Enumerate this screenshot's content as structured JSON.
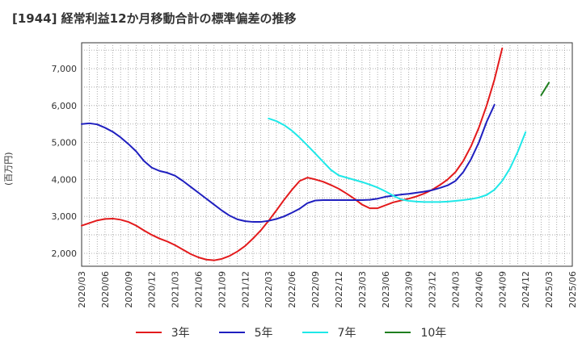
{
  "chart_data": {
    "type": "line",
    "title": "[1944]  経常利益12か月移動合計の標準偏差の推移",
    "ylabel": "(百万円)",
    "xlabel": "",
    "ylim": [
      1650,
      7700
    ],
    "yticks": [
      2000,
      3000,
      4000,
      5000,
      6000,
      7000
    ],
    "ytick_labels": [
      "2,000",
      "3,000",
      "4,000",
      "5,000",
      "6,000",
      "7,000"
    ],
    "x_start": "2020/03",
    "x_end": "2025/06",
    "x_tick_labels": [
      "2020/03",
      "2020/06",
      "2020/09",
      "2020/12",
      "2021/03",
      "2021/06",
      "2021/09",
      "2021/12",
      "2022/03",
      "2022/06",
      "2022/09",
      "2022/12",
      "2023/03",
      "2023/06",
      "2023/09",
      "2023/12",
      "2024/03",
      "2024/06",
      "2024/09",
      "2024/12",
      "2025/03",
      "2025/06"
    ],
    "grid": true,
    "legend_position": "bottom",
    "series": [
      {
        "name": "3年",
        "color": "#e31a1c",
        "start": "2020/03",
        "values": [
          2750,
          2820,
          2890,
          2930,
          2940,
          2910,
          2850,
          2750,
          2620,
          2500,
          2400,
          2320,
          2220,
          2100,
          1980,
          1890,
          1830,
          1810,
          1850,
          1930,
          2050,
          2200,
          2400,
          2620,
          2880,
          3160,
          3450,
          3720,
          3960,
          4050,
          4000,
          3940,
          3850,
          3750,
          3620,
          3480,
          3320,
          3220,
          3220,
          3300,
          3380,
          3430,
          3480,
          3540,
          3620,
          3720,
          3850,
          4000,
          4200,
          4500,
          4900,
          5400,
          6000,
          6700,
          7550
        ]
      },
      {
        "name": "5年",
        "color": "#1f1fbf",
        "start": "2020/03",
        "values": [
          5500,
          5520,
          5490,
          5400,
          5290,
          5140,
          4960,
          4760,
          4500,
          4320,
          4230,
          4180,
          4100,
          3960,
          3800,
          3640,
          3480,
          3320,
          3160,
          3020,
          2920,
          2870,
          2850,
          2850,
          2880,
          2930,
          3000,
          3100,
          3210,
          3360,
          3430,
          3440,
          3440,
          3440,
          3440,
          3440,
          3440,
          3450,
          3480,
          3530,
          3560,
          3590,
          3610,
          3640,
          3670,
          3710,
          3770,
          3840,
          3960,
          4200,
          4550,
          5000,
          5560,
          6020
        ]
      },
      {
        "name": "7年",
        "color": "#1ee8e8",
        "start": "2022/03",
        "values": [
          5650,
          5580,
          5470,
          5320,
          5130,
          4920,
          4700,
          4480,
          4260,
          4110,
          4050,
          3990,
          3930,
          3860,
          3780,
          3680,
          3560,
          3460,
          3420,
          3400,
          3390,
          3390,
          3390,
          3400,
          3420,
          3440,
          3470,
          3510,
          3580,
          3720,
          3960,
          4300,
          4750,
          5280
        ]
      },
      {
        "name": "10年",
        "color": "#1f7f1f",
        "start": "2025/02",
        "values": [
          6280,
          6620
        ]
      }
    ]
  }
}
